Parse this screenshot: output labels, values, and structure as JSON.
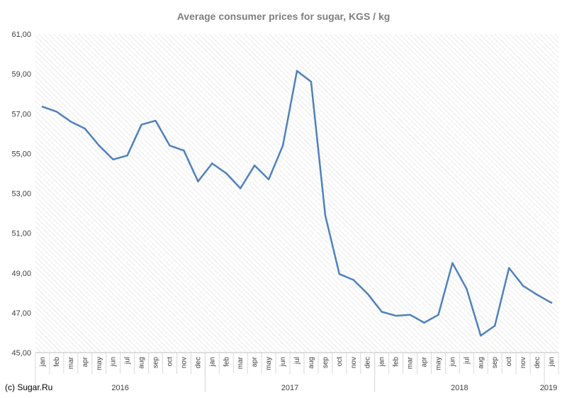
{
  "chart_data": {
    "type": "line",
    "title": "Average consumer prices for sugar, KGS / kg",
    "xlabel": "",
    "ylabel": "",
    "ylim": [
      45,
      61
    ],
    "yticks": [
      "45,00",
      "47,00",
      "49,00",
      "51,00",
      "53,00",
      "55,00",
      "57,00",
      "59,00",
      "61,00"
    ],
    "grid": "diagonal-hatch background",
    "legend": "none",
    "categories": [
      "jan",
      "feb",
      "mar",
      "apr",
      "may",
      "jun",
      "jul",
      "aug",
      "sep",
      "oct",
      "nov",
      "dec",
      "jan",
      "feb",
      "mar",
      "apr",
      "may",
      "jun",
      "jul",
      "aug",
      "sep",
      "oct",
      "nov",
      "dec",
      "jan",
      "feb",
      "mar",
      "apr",
      "may",
      "jun",
      "jul",
      "aug",
      "sep",
      "oct",
      "nov",
      "dec",
      "jan"
    ],
    "groups": [
      {
        "label": "2016",
        "count": 12
      },
      {
        "label": "2017",
        "count": 12
      },
      {
        "label": "2018",
        "count": 12
      },
      {
        "label": "2019",
        "count": 1
      }
    ],
    "series": [
      {
        "color": "#4f81bd",
        "values": [
          57.35,
          57.1,
          56.6,
          56.25,
          55.4,
          54.7,
          54.9,
          56.45,
          56.65,
          55.4,
          55.15,
          53.6,
          54.5,
          54.0,
          53.25,
          54.4,
          53.7,
          55.4,
          59.15,
          58.6,
          51.9,
          48.95,
          48.65,
          47.95,
          47.05,
          46.85,
          46.9,
          46.5,
          46.9,
          49.5,
          48.2,
          45.85,
          46.35,
          49.25,
          48.35,
          47.9,
          47.5
        ]
      }
    ]
  },
  "credit": "(c) Sugar.Ru",
  "colors": {
    "line": "#4f81bd",
    "hatch": "#d9d9d9",
    "axis": "#bfbfbf"
  }
}
